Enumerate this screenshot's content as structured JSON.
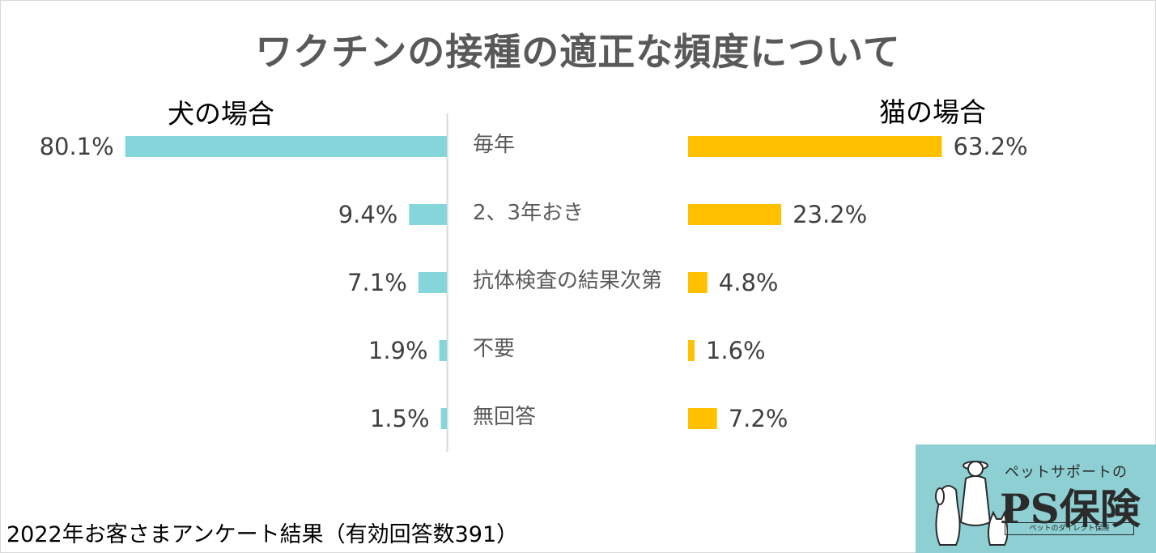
{
  "chart_data": {
    "type": "bar",
    "title": "ワクチンの接種の適正な頻度について",
    "categories": [
      "毎年",
      "2、3年おき",
      "抗体検査の結果次第",
      "不要",
      "無回答"
    ],
    "series": [
      {
        "name": "犬の場合",
        "values": [
          80.1,
          9.4,
          7.1,
          1.9,
          1.5
        ],
        "labels": [
          "80.1%",
          "9.4%",
          "7.1%",
          "1.9%",
          "1.5%"
        ],
        "color": "#85d6da"
      },
      {
        "name": "猫の場合",
        "values": [
          63.2,
          23.2,
          4.8,
          1.6,
          7.2
        ],
        "labels": [
          "63.2%",
          "23.2%",
          "4.8%",
          "1.6%",
          "7.2%"
        ],
        "color": "#ffc000"
      }
    ],
    "xlim": [
      0,
      100
    ],
    "xlabel": "",
    "ylabel": "",
    "grid": false,
    "legend": "top-left and top-right"
  },
  "footnote": "2022年お客さまアンケート結果（有効回答数391）",
  "logo": {
    "tagline": "ペットサポートの",
    "name": "PS保険",
    "subtitle": "ペットのダイレクト保険",
    "color": "#8dcfd3"
  },
  "colors": {
    "title": "#595959",
    "axis": "#d9d9d9",
    "value_label": "#404040"
  }
}
